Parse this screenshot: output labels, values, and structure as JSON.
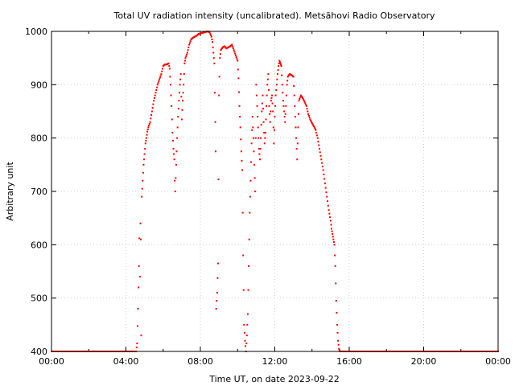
{
  "chart_data": {
    "type": "scatter",
    "title": "Total UV radiation intensity (uncalibrated). Metsähovi Radio Observatory",
    "xlabel": "Time UT, on date 2023-09-22",
    "ylabel": "Arbitrary unit",
    "xlim": [
      0,
      24
    ],
    "ylim": [
      400,
      1000
    ],
    "x_ticks": [
      0,
      4,
      8,
      12,
      16,
      20,
      24
    ],
    "x_tick_labels": [
      "00:00",
      "04:00",
      "08:00",
      "12:00",
      "16:00",
      "20:00",
      "00:00"
    ],
    "y_ticks": [
      400,
      500,
      600,
      700,
      800,
      900,
      1000
    ],
    "y_tick_labels": [
      "400",
      "500",
      "600",
      "700",
      "800",
      "900",
      "1000"
    ],
    "grid": true,
    "legend": "none",
    "color": "#ff0000",
    "series": [
      {
        "x_unit": "hours UT",
        "points": [
          [
            0.0,
            400
          ],
          [
            4.55,
            400
          ],
          [
            4.6,
            415
          ],
          [
            4.65,
            480
          ],
          [
            4.7,
            560
          ],
          [
            4.72,
            612
          ],
          [
            4.75,
            540
          ],
          [
            4.78,
            640
          ],
          [
            4.8,
            610
          ],
          [
            4.82,
            430
          ],
          [
            4.85,
            690
          ],
          [
            4.9,
            720
          ],
          [
            4.95,
            750
          ],
          [
            5.0,
            770
          ],
          [
            5.05,
            790
          ],
          [
            5.1,
            800
          ],
          [
            5.15,
            812
          ],
          [
            5.2,
            820
          ],
          [
            5.3,
            830
          ],
          [
            5.4,
            850
          ],
          [
            5.5,
            870
          ],
          [
            5.6,
            885
          ],
          [
            5.7,
            900
          ],
          [
            5.8,
            910
          ],
          [
            5.9,
            920
          ],
          [
            6.0,
            935
          ],
          [
            6.1,
            938
          ],
          [
            6.2,
            938
          ],
          [
            6.3,
            940
          ],
          [
            6.35,
            930
          ],
          [
            6.4,
            900
          ],
          [
            6.45,
            860
          ],
          [
            6.5,
            810
          ],
          [
            6.55,
            780
          ],
          [
            6.6,
            760
          ],
          [
            6.62,
            720
          ],
          [
            6.65,
            700
          ],
          [
            6.7,
            750
          ],
          [
            6.75,
            800
          ],
          [
            6.8,
            840
          ],
          [
            6.85,
            870
          ],
          [
            6.9,
            900
          ],
          [
            6.95,
            920
          ],
          [
            7.0,
            835
          ],
          [
            7.05,
            870
          ],
          [
            7.1,
            900
          ],
          [
            7.15,
            940
          ],
          [
            7.2,
            950
          ],
          [
            7.3,
            960
          ],
          [
            7.4,
            975
          ],
          [
            7.5,
            985
          ],
          [
            7.6,
            988
          ],
          [
            7.7,
            990
          ],
          [
            7.8,
            992
          ],
          [
            7.9,
            995
          ],
          [
            8.0,
            996
          ],
          [
            8.1,
            997
          ],
          [
            8.2,
            998
          ],
          [
            8.3,
            999
          ],
          [
            8.4,
            1000
          ],
          [
            8.5,
            998
          ],
          [
            8.6,
            990
          ],
          [
            8.65,
            980
          ],
          [
            8.7,
            960
          ],
          [
            8.75,
            940
          ],
          [
            8.8,
            830
          ],
          [
            8.82,
            775
          ],
          [
            8.85,
            480
          ],
          [
            8.9,
            510
          ],
          [
            8.95,
            565
          ],
          [
            9.0,
            880
          ],
          [
            9.05,
            950
          ],
          [
            9.1,
            965
          ],
          [
            9.2,
            970
          ],
          [
            9.3,
            972
          ],
          [
            9.4,
            968
          ],
          [
            9.5,
            970
          ],
          [
            9.6,
            972
          ],
          [
            9.7,
            975
          ],
          [
            9.8,
            965
          ],
          [
            9.9,
            955
          ],
          [
            10.0,
            945
          ],
          [
            10.05,
            912
          ],
          [
            10.1,
            860
          ],
          [
            10.15,
            820
          ],
          [
            10.2,
            775
          ],
          [
            10.25,
            740
          ],
          [
            10.3,
            580
          ],
          [
            10.35,
            450
          ],
          [
            10.4,
            420
          ],
          [
            10.45,
            400
          ],
          [
            10.5,
            430
          ],
          [
            10.55,
            470
          ],
          [
            10.6,
            560
          ],
          [
            10.65,
            660
          ],
          [
            10.7,
            720
          ],
          [
            10.75,
            790
          ],
          [
            10.8,
            840
          ],
          [
            10.85,
            800
          ],
          [
            10.9,
            750
          ],
          [
            10.95,
            700
          ],
          [
            11.0,
            900
          ],
          [
            11.05,
            860
          ],
          [
            11.1,
            820
          ],
          [
            11.15,
            780
          ],
          [
            11.2,
            760
          ],
          [
            11.25,
            800
          ],
          [
            11.3,
            850
          ],
          [
            11.35,
            880
          ],
          [
            11.4,
            830
          ],
          [
            11.45,
            790
          ],
          [
            11.5,
            810
          ],
          [
            11.55,
            860
          ],
          [
            11.6,
            900
          ],
          [
            11.65,
            920
          ],
          [
            11.7,
            860
          ],
          [
            11.75,
            830
          ],
          [
            11.8,
            870
          ],
          [
            11.85,
            880
          ],
          [
            11.9,
            850
          ],
          [
            11.95,
            790
          ],
          [
            12.0,
            840
          ],
          [
            12.05,
            880
          ],
          [
            12.1,
            900
          ],
          [
            12.15,
            920
          ],
          [
            12.2,
            935
          ],
          [
            12.25,
            945
          ],
          [
            12.3,
            940
          ],
          [
            12.35,
            935
          ],
          [
            12.4,
            900
          ],
          [
            12.45,
            870
          ],
          [
            12.5,
            850
          ],
          [
            12.55,
            830
          ],
          [
            12.6,
            860
          ],
          [
            12.65,
            900
          ],
          [
            12.7,
            915
          ],
          [
            12.8,
            920
          ],
          [
            12.9,
            918
          ],
          [
            13.0,
            915
          ],
          [
            13.05,
            880
          ],
          [
            13.1,
            840
          ],
          [
            13.15,
            800
          ],
          [
            13.2,
            760
          ],
          [
            13.25,
            820
          ],
          [
            13.3,
            870
          ],
          [
            13.4,
            880
          ],
          [
            13.5,
            875
          ],
          [
            13.6,
            868
          ],
          [
            13.7,
            860
          ],
          [
            13.8,
            845
          ],
          [
            13.9,
            835
          ],
          [
            14.0,
            828
          ],
          [
            14.1,
            822
          ],
          [
            14.2,
            815
          ],
          [
            14.3,
            800
          ],
          [
            14.4,
            780
          ],
          [
            14.5,
            760
          ],
          [
            14.6,
            740
          ],
          [
            14.7,
            715
          ],
          [
            14.8,
            690
          ],
          [
            14.9,
            665
          ],
          [
            15.0,
            645
          ],
          [
            15.05,
            630
          ],
          [
            15.1,
            620
          ],
          [
            15.15,
            610
          ],
          [
            15.2,
            600
          ],
          [
            15.25,
            560
          ],
          [
            15.3,
            495
          ],
          [
            15.35,
            450
          ],
          [
            15.4,
            420
          ],
          [
            15.45,
            405
          ],
          [
            15.5,
            400
          ],
          [
            24.0,
            400
          ]
        ]
      }
    ]
  }
}
